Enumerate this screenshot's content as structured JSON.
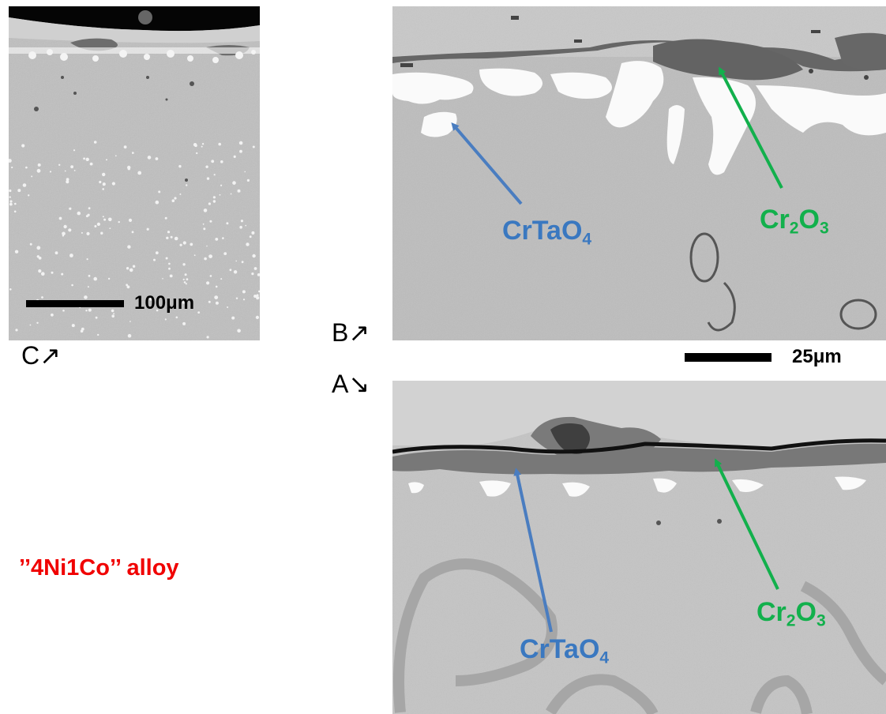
{
  "panels": {
    "c": {
      "label": "C",
      "arrow": "↗",
      "scalebar": "100μm"
    },
    "b": {
      "label": "B",
      "arrow": "↗",
      "scalebar": "25μm",
      "annotations": [
        {
          "base": "CrTaO",
          "sub": "4",
          "color": "#3a78c0"
        },
        {
          "base1": "Cr",
          "sub1": "2",
          "base2": "O",
          "sub2": "3",
          "color": "#12b04c"
        }
      ]
    },
    "a": {
      "label": "A",
      "arrow": "↘",
      "annotations": [
        {
          "base": "CrTaO",
          "sub": "4",
          "color": "#3a78c0"
        },
        {
          "base1": "Cr",
          "sub1": "2",
          "base2": "O",
          "sub2": "3",
          "color": "#12b04c"
        }
      ]
    }
  },
  "caption": "’’4Ni1Co’’ alloy",
  "colors": {
    "caption": "#f00000",
    "crtao4": "#3a78c0",
    "cr2o3": "#12b04c"
  }
}
